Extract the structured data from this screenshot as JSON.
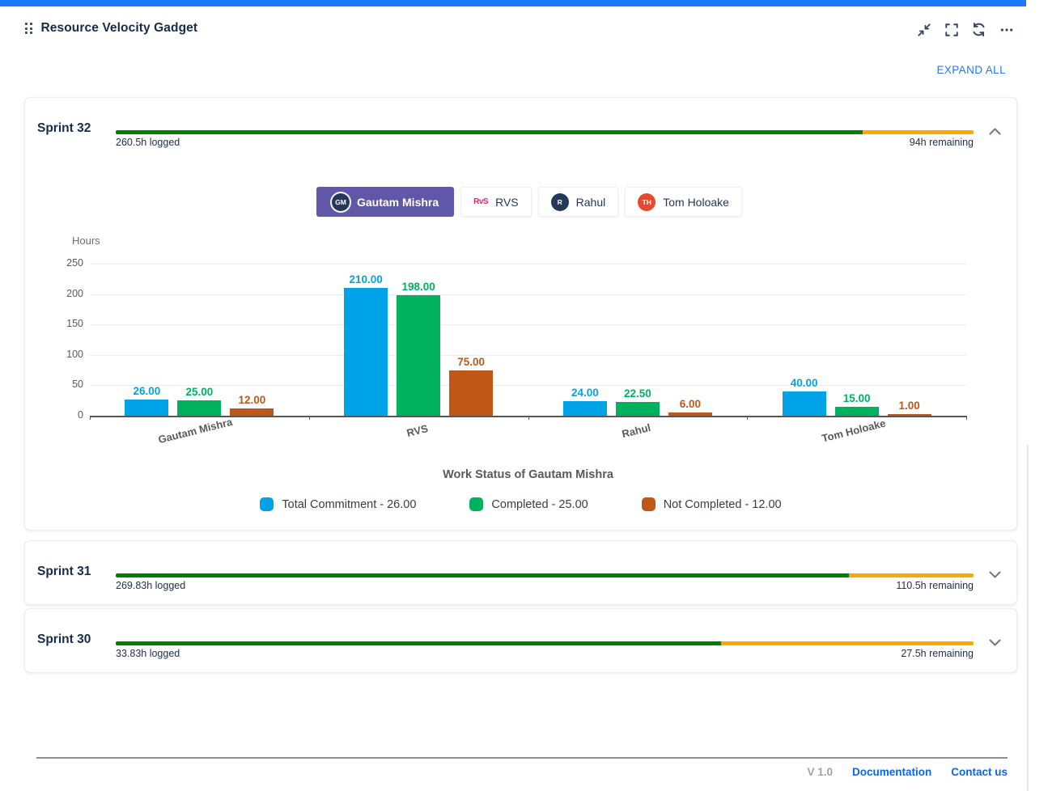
{
  "header": {
    "title": "Resource Velocity Gadget",
    "expand_all_label": "EXPAND ALL"
  },
  "sprints": [
    {
      "name": "Sprint 32",
      "logged_label": "260.5h logged",
      "remaining_label": "94h remaining",
      "logged_pct": 87.1,
      "state": "expanded"
    },
    {
      "name": "Sprint 31",
      "logged_label": "269.83h logged",
      "remaining_label": "110.5h remaining",
      "logged_pct": 85.5,
      "state": "collapsed"
    },
    {
      "name": "Sprint 30",
      "logged_label": "33.83h logged",
      "remaining_label": "27.5h remaining",
      "logged_pct": 70.6,
      "state": "collapsed"
    }
  ],
  "tabs": [
    {
      "label": "Gautam Mishra",
      "avatar_type": "circle",
      "avatar_text": "GM",
      "avatar_color": "#253858",
      "selected": true
    },
    {
      "label": "RVS",
      "avatar_type": "logo",
      "avatar_text": "RvS",
      "avatar_color": "#E02770",
      "selected": false
    },
    {
      "label": "Rahul",
      "avatar_type": "circle",
      "avatar_text": "R",
      "avatar_color": "#253858",
      "selected": false
    },
    {
      "label": "Tom Holoake",
      "avatar_type": "circle",
      "avatar_text": "TH",
      "avatar_color": "#E3492E",
      "selected": false
    }
  ],
  "chart_data": {
    "type": "bar",
    "title": "Work Status of Gautam Mishra",
    "ylabel": "Hours",
    "categories": [
      "Gautam Mishra",
      "RVS",
      "Rahul",
      "Tom Holoake"
    ],
    "series": [
      {
        "name": "Total Commitment",
        "legend_label": "Total Commitment - 26.00",
        "color": "#00A3E8",
        "values": [
          26,
          210,
          24,
          40
        ]
      },
      {
        "name": "Completed",
        "legend_label": "Completed  - 25.00",
        "color": "#00B25E",
        "values": [
          25,
          198,
          22.5,
          15
        ]
      },
      {
        "name": "Not Completed",
        "legend_label": "Not Completed  - 12.00",
        "color": "#C05717",
        "values": [
          12,
          75,
          6,
          1
        ]
      }
    ],
    "ylim": [
      0,
      250
    ],
    "yticks": [
      0,
      50,
      100,
      150,
      200,
      250
    ],
    "grid": true,
    "legend_position": "bottom"
  },
  "footer": {
    "version": "V 1.0",
    "links": [
      "Documentation",
      "Contact us"
    ]
  },
  "colors": {
    "top_strip_blue": "#1D7AFC",
    "progress_green": "#008000",
    "progress_amber": "#FFA800",
    "link_blue": "#0C66E4"
  }
}
